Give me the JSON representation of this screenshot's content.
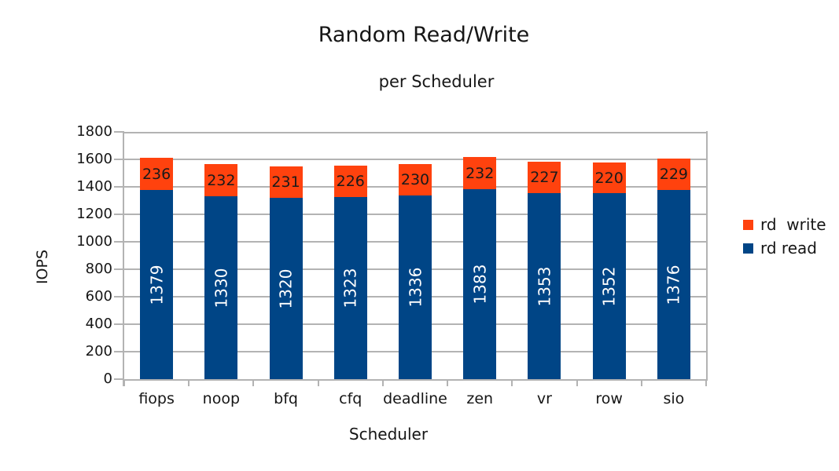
{
  "chart_data": {
    "type": "bar",
    "stacked": true,
    "title": "Random Read/Write",
    "subtitle": "per Scheduler",
    "xlabel": "Scheduler",
    "ylabel": "IOPS",
    "categories": [
      "fiops",
      "noop",
      "bfq",
      "cfq",
      "deadline",
      "zen",
      "vr",
      "row",
      "sio"
    ],
    "series": [
      {
        "name": "rd read",
        "color": "#004586",
        "label_color": "#ffffff",
        "values": [
          1379,
          1330,
          1320,
          1323,
          1336,
          1383,
          1353,
          1352,
          1376
        ]
      },
      {
        "name": "rd  write",
        "color": "#ff420e",
        "label_color": "#1a1a1a",
        "values": [
          236,
          232,
          231,
          226,
          230,
          232,
          227,
          220,
          229
        ]
      }
    ],
    "ylim": [
      0,
      1800
    ],
    "yticks": [
      0,
      200,
      400,
      600,
      800,
      1000,
      1200,
      1400,
      1600,
      1800
    ],
    "grid": true,
    "legend_position": "right",
    "legend": [
      {
        "label": "rd  write",
        "color": "#ff420e"
      },
      {
        "label": "rd read",
        "color": "#004586"
      }
    ]
  },
  "colors": {
    "bar_read": "#004586",
    "bar_write": "#ff420e",
    "grid": "#b3b3b3",
    "axis": "#b3b3b3",
    "text": "#161616",
    "background": "#ffffff"
  }
}
